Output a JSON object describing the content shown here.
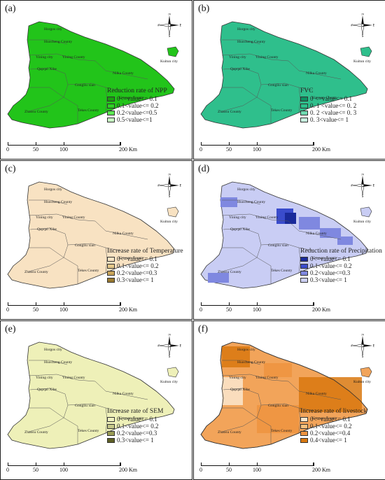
{
  "panels": [
    {
      "id": "a",
      "label": "(a)",
      "fill": "#22c41a",
      "legend_title": "Reduction rate of NPP",
      "legend": [
        {
          "text": "0<=value<= 0.1",
          "color": "#1a9e10"
        },
        {
          "text": "0.1<value<= 0.2",
          "color": "#2fd024"
        },
        {
          "text": "0.2<value<=0.5",
          "color": "#5de853"
        },
        {
          "text": "0.5<value<=1",
          "color": "#c7f5c2"
        }
      ],
      "scale": {
        "ticks": [
          "0",
          "50",
          "100",
          "200 Km"
        ]
      },
      "inset_label": "Kuitun city",
      "places": [
        "Horgos city",
        "Huocheng County",
        "Yining city",
        "Yining County",
        "Qapqal Xibe",
        "Nilka County",
        "Gongliu xian",
        "Xinyuan County",
        "Zhaosu County",
        "Tekes County"
      ]
    },
    {
      "id": "b",
      "label": "(b)",
      "fill": "#2fbf8c",
      "legend_title": "FVC",
      "legend": [
        {
          "text": "0 <=value<= 0.1",
          "color": "#0d8f60"
        },
        {
          "text": "0. 1 <value<= 0. 2",
          "color": "#2cc08b"
        },
        {
          "text": "0. 2 <value<= 0. 3",
          "color": "#6fd8b0"
        },
        {
          "text": "0. 3<value<= 1",
          "color": "#c8f0e0"
        }
      ],
      "scale": {
        "ticks": [
          "0",
          "50",
          "100",
          "200 Km"
        ]
      },
      "inset_label": "Kuitun city",
      "places": [
        "Horgos city",
        "Huocheng County",
        "Yining city",
        "Yining County",
        "Qapqal Xibe",
        "Nilka County",
        "Gongliu xian",
        "Xinyuan County",
        "Zhaosu County",
        "Tekes County"
      ]
    },
    {
      "id": "c",
      "label": "(c)",
      "fill": "#f8e2c2",
      "legend_title": "Increase rate of Temperature",
      "legend": [
        {
          "text": "0<=value<= 0.1",
          "color": "#f8e2c2"
        },
        {
          "text": "0.1<value<= 0.2",
          "color": "#e6c98a"
        },
        {
          "text": "0.2<value<=0.3",
          "color": "#c9a55a"
        },
        {
          "text": "0.3<value<= 1",
          "color": "#9a7a30"
        }
      ],
      "scale": {
        "ticks": [
          "0",
          "50",
          "100",
          "200 Km"
        ]
      },
      "inset_label": "Kuitun city",
      "places": [
        "Horgos city",
        "Huocheng County",
        "Yining city",
        "Yining County",
        "Qapqal Xibe",
        "Nilka County",
        "Gongliu xian",
        "Xinyuan County",
        "Zhaosu County",
        "Tekes County"
      ]
    },
    {
      "id": "d",
      "label": "(d)",
      "fill": "#c9cdf4",
      "legend_title": "Reduction rate of Precipitation",
      "legend": [
        {
          "text": "0<=value<= 0.1",
          "color": "#1a2a9a"
        },
        {
          "text": "0.1<value<= 0.2",
          "color": "#3a4ccc"
        },
        {
          "text": "0.2<value<=0.3",
          "color": "#7f88e0"
        },
        {
          "text": "0.3<value<= 1",
          "color": "#cdd0f4"
        }
      ],
      "scale": {
        "ticks": [
          "0",
          "50",
          "100",
          "200 Km"
        ]
      },
      "inset_label": "Kuitun city",
      "places": [
        "Horgos city",
        "Huocheng County",
        "Yining city",
        "Yining County",
        "Qapqal Xibe",
        "Nilka County",
        "Gongliu xian",
        "Xinyuan County",
        "Zhaosu County",
        "Tekes County"
      ]
    },
    {
      "id": "e",
      "label": "(e)",
      "fill": "#eef0b8",
      "legend_title": "Increase rate of SEM",
      "legend": [
        {
          "text": "0<=value<= 0.1",
          "color": "#f0f2c0"
        },
        {
          "text": "0.1<value<= 0.2",
          "color": "#c7c98a"
        },
        {
          "text": "0.2<value<=0.3",
          "color": "#9a9c55"
        },
        {
          "text": "0.3<value<= 1",
          "color": "#5e6025"
        }
      ],
      "scale": {
        "ticks": [
          "0",
          "50",
          "100",
          "200 Km"
        ]
      },
      "inset_label": "Kuitun city",
      "places": [
        "Horgos city",
        "Huocheng County",
        "Yining city",
        "Yining County",
        "Qapqal Xibe",
        "Nilka County",
        "Gongliu xian",
        "Xinyuan County",
        "Zhaosu County",
        "Tekes County"
      ]
    },
    {
      "id": "f",
      "label": "(f)",
      "fill": "#f2a45a",
      "legend_title": "Increase rate of livestock",
      "legend": [
        {
          "text": "0<=value<= 0.1",
          "color": "#fbe8cf"
        },
        {
          "text": "0.1<value<= 0.2",
          "color": "#f6c27e"
        },
        {
          "text": "0.2<value<=0.4",
          "color": "#ef9440"
        },
        {
          "text": "0.4<value<= 1",
          "color": "#d9780f"
        }
      ],
      "scale": {
        "ticks": [
          "0",
          "50",
          "100",
          "200 Km"
        ]
      },
      "inset_label": "Kuitun city",
      "places": [
        "Horgos city",
        "Huocheng County",
        "Yining city",
        "Yining County",
        "Qapqal Xibe",
        "Nilka County",
        "Gongliu xian",
        "Xinyuan County",
        "Zhaosu County",
        "Tekes County"
      ]
    }
  ],
  "compass_letters": [
    "N",
    "E",
    "S",
    "W"
  ]
}
